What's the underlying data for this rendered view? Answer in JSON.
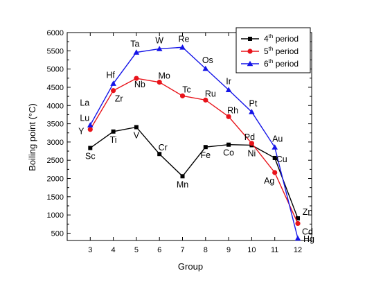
{
  "chart_data": {
    "type": "line",
    "title": "",
    "xlabel": "Group",
    "ylabel": "Boiling point (°C)",
    "xlim": [
      2,
      12.6
    ],
    "ylim": [
      300,
      6000
    ],
    "xticks": [
      3,
      4,
      5,
      6,
      7,
      8,
      9,
      10,
      11,
      12
    ],
    "yticks": [
      500,
      1000,
      1500,
      2000,
      2500,
      3000,
      3500,
      4000,
      4500,
      5000,
      5500,
      6000
    ],
    "grid": false,
    "legend": {
      "position": "top-right",
      "entries": [
        {
          "base": "4",
          "sup": "th",
          "text": " period"
        },
        {
          "base": "5",
          "sup": "th",
          "text": " period"
        },
        {
          "base": "6",
          "sup": "th",
          "text": " period"
        }
      ]
    },
    "series": [
      {
        "color": "#000000",
        "marker": "square",
        "x": [
          3,
          4,
          5,
          6,
          7,
          8,
          9,
          10,
          11,
          12
        ],
        "y": [
          2836,
          3287,
          3407,
          2671,
          2061,
          2861,
          2927,
          2913,
          2562,
          907
        ],
        "labels": [
          "Sc",
          "Ti",
          "V",
          "Cr",
          "Mn",
          "Fe",
          "Co",
          "Ni",
          "Cu",
          "Zn"
        ]
      },
      {
        "color": "#e8131a",
        "marker": "circle",
        "x": [
          3,
          4,
          5,
          6,
          7,
          8,
          9,
          10,
          11,
          12
        ],
        "y": [
          3345,
          4409,
          4744,
          4639,
          4265,
          4150,
          3695,
          2963,
          2162,
          767
        ],
        "labels": [
          "Y",
          "Zr",
          "Nb",
          "Mo",
          "Tc",
          "Ru",
          "Rh",
          "Pd",
          "Ag",
          "Cd"
        ]
      },
      {
        "color": "#1515e8",
        "marker": "triangle",
        "x": [
          3,
          4,
          5,
          6,
          7,
          8,
          9,
          10,
          11,
          12
        ],
        "y": [
          3464,
          4603,
          5458,
          5555,
          5596,
          5012,
          4428,
          3825,
          2856,
          357
        ],
        "labels": [
          "La\nLu",
          "Hf",
          "Ta",
          "W",
          "Re",
          "Os",
          "Ir",
          "Pt",
          "Au",
          "Hg"
        ]
      }
    ]
  }
}
